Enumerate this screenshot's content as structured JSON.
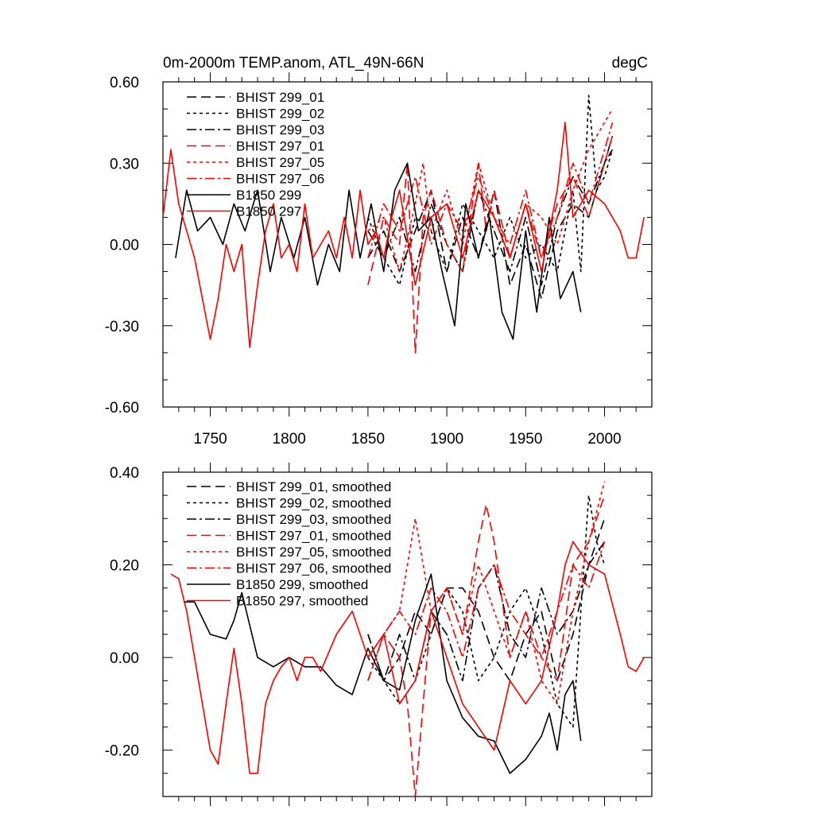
{
  "chart_data": [
    {
      "type": "line",
      "title": "0m-2000m TEMP.anom, ATL_49N-66N",
      "units": "degC",
      "xlim": [
        1720,
        2030
      ],
      "ylim": [
        -0.6,
        0.6
      ],
      "x_ticks": [
        1750,
        1800,
        1850,
        1900,
        1950,
        2000
      ],
      "y_ticks": [
        "-0.60",
        "-0.30",
        "0.00",
        "0.30",
        "0.60"
      ],
      "series": [
        {
          "name": "BHIST 299_01",
          "color": "#000000",
          "dash": "12 6",
          "x": [
            1850,
            1860,
            1870,
            1880,
            1890,
            1900,
            1910,
            1920,
            1930,
            1940,
            1950,
            1960,
            1970,
            1980,
            1990,
            2000,
            2005
          ],
          "y": [
            -0.05,
            0.05,
            -0.1,
            0.05,
            0.2,
            -0.1,
            0.1,
            -0.05,
            0.2,
            -0.15,
            0.0,
            -0.2,
            0.05,
            0.15,
            0.1,
            0.3,
            0.4
          ]
        },
        {
          "name": "BHIST 299_02",
          "color": "#000000",
          "dash": "4 4",
          "x": [
            1850,
            1860,
            1870,
            1880,
            1890,
            1900,
            1910,
            1920,
            1930,
            1940,
            1950,
            1960,
            1970,
            1980,
            1985,
            1990,
            1995,
            2000,
            2005
          ],
          "y": [
            0.1,
            -0.05,
            -0.15,
            0.1,
            0.05,
            -0.1,
            0.15,
            0.05,
            -0.05,
            0.1,
            -0.05,
            0.0,
            -0.1,
            0.2,
            -0.1,
            0.55,
            0.2,
            0.25,
            0.35
          ]
        },
        {
          "name": "BHIST 299_03",
          "color": "#000000",
          "dash": "12 4 3 4",
          "x": [
            1850,
            1860,
            1870,
            1880,
            1890,
            1900,
            1910,
            1920,
            1930,
            1940,
            1950,
            1960,
            1970,
            1980,
            1990,
            2000,
            2005
          ],
          "y": [
            0.05,
            -0.05,
            0.1,
            -0.1,
            0.15,
            0.0,
            -0.1,
            0.2,
            0.05,
            -0.1,
            0.1,
            -0.15,
            0.1,
            0.25,
            0.15,
            0.3,
            0.35
          ]
        },
        {
          "name": "BHIST 297_01",
          "color": "#ff0000",
          "dash": "12 6",
          "x": [
            1850,
            1860,
            1870,
            1875,
            1880,
            1885,
            1890,
            1900,
            1910,
            1920,
            1925,
            1930,
            1940,
            1950,
            1960,
            1970,
            1980,
            1990,
            2000,
            2005
          ],
          "y": [
            -0.15,
            0.1,
            0.0,
            0.3,
            -0.4,
            0.1,
            0.2,
            0.0,
            -0.1,
            0.3,
            0.05,
            0.2,
            -0.05,
            0.15,
            -0.05,
            0.15,
            0.25,
            0.1,
            0.3,
            0.4
          ]
        },
        {
          "name": "BHIST 297_05",
          "color": "#ff0000",
          "dash": "4 4",
          "x": [
            1850,
            1860,
            1870,
            1880,
            1885,
            1890,
            1900,
            1910,
            1920,
            1930,
            1940,
            1950,
            1960,
            1970,
            1980,
            1990,
            2000,
            2005
          ],
          "y": [
            0.05,
            0.1,
            -0.1,
            0.15,
            0.3,
            0.05,
            0.2,
            0.0,
            0.3,
            0.1,
            -0.05,
            0.15,
            0.1,
            0.0,
            0.2,
            0.35,
            0.45,
            0.5
          ]
        },
        {
          "name": "BHIST 297_06",
          "color": "#ff0000",
          "dash": "12 4 3 4",
          "x": [
            1850,
            1860,
            1870,
            1880,
            1890,
            1900,
            1910,
            1920,
            1930,
            1940,
            1950,
            1960,
            1970,
            1980,
            1990,
            2000,
            2005
          ],
          "y": [
            -0.05,
            0.15,
            0.05,
            0.25,
            0.0,
            0.15,
            0.05,
            0.25,
            0.1,
            0.0,
            0.2,
            -0.05,
            0.1,
            0.3,
            0.15,
            0.35,
            0.45
          ]
        },
        {
          "name": "B1850 299",
          "color": "#000000",
          "dash": "",
          "x": [
            1728,
            1735,
            1742,
            1750,
            1758,
            1765,
            1772,
            1780,
            1788,
            1795,
            1803,
            1810,
            1818,
            1825,
            1832,
            1838,
            1845,
            1852,
            1860,
            1867,
            1875,
            1882,
            1890,
            1897,
            1905,
            1912,
            1920,
            1927,
            1935,
            1942,
            1950,
            1957,
            1965,
            1972,
            1980,
            1985
          ],
          "y": [
            -0.05,
            0.2,
            0.05,
            0.1,
            0.0,
            0.15,
            0.05,
            0.2,
            -0.1,
            0.1,
            -0.05,
            0.1,
            -0.15,
            0.0,
            -0.1,
            0.2,
            -0.05,
            0.15,
            -0.1,
            0.2,
            0.3,
            0.05,
            0.1,
            -0.1,
            -0.3,
            0.15,
            -0.05,
            0.1,
            -0.25,
            -0.35,
            0.05,
            -0.25,
            0.1,
            -0.2,
            -0.1,
            -0.25
          ]
        },
        {
          "name": "B1850 297",
          "color": "#ff0000",
          "dash": "",
          "x": [
            1720,
            1725,
            1730,
            1735,
            1740,
            1745,
            1750,
            1755,
            1760,
            1765,
            1770,
            1775,
            1780,
            1785,
            1790,
            1795,
            1800,
            1805,
            1810,
            1815,
            1820,
            1825,
            1830,
            1835,
            1840,
            1845,
            1850,
            1855,
            1860,
            1865,
            1870,
            1880,
            1890,
            1900,
            1910,
            1920,
            1930,
            1940,
            1950,
            1960,
            1970,
            1975,
            1980,
            1990,
            2000,
            2010,
            2015,
            2020,
            2025
          ],
          "y": [
            0.1,
            0.35,
            0.15,
            0.05,
            -0.05,
            -0.2,
            -0.35,
            -0.2,
            0.0,
            -0.1,
            0.0,
            -0.38,
            -0.15,
            0.05,
            0.15,
            -0.05,
            0.0,
            -0.1,
            0.15,
            -0.05,
            0.0,
            0.05,
            -0.05,
            0.1,
            -0.05,
            0.2,
            0.0,
            0.05,
            -0.05,
            0.1,
            0.2,
            -0.15,
            0.1,
            0.15,
            -0.05,
            0.2,
            0.1,
            -0.05,
            0.15,
            -0.1,
            0.2,
            0.45,
            0.1,
            0.2,
            0.15,
            0.05,
            -0.05,
            -0.05,
            0.1
          ]
        }
      ]
    },
    {
      "type": "line",
      "xlim": [
        1720,
        2030
      ],
      "ylim": [
        -0.3,
        0.4
      ],
      "y_ticks": [
        "-0.20",
        "0.00",
        "0.20",
        "0.40"
      ],
      "series": [
        {
          "name": "BHIST 299_01, smoothed",
          "color": "#000000",
          "dash": "12 6",
          "x": [
            1850,
            1860,
            1870,
            1880,
            1890,
            1900,
            1910,
            1920,
            1930,
            1940,
            1950,
            1960,
            1970,
            1980,
            1990,
            2000
          ],
          "y": [
            0.05,
            -0.05,
            0.0,
            0.1,
            0.05,
            0.15,
            0.15,
            0.1,
            0.0,
            -0.05,
            0.05,
            0.1,
            -0.05,
            0.05,
            0.2,
            0.3
          ]
        },
        {
          "name": "BHIST 299_02, smoothed",
          "color": "#000000",
          "dash": "4 4",
          "x": [
            1850,
            1860,
            1870,
            1880,
            1890,
            1900,
            1910,
            1920,
            1930,
            1940,
            1950,
            1960,
            1970,
            1980,
            1985,
            1990,
            1995,
            2000
          ],
          "y": [
            0.0,
            -0.05,
            -0.1,
            -0.05,
            0.05,
            0.15,
            0.1,
            -0.05,
            0.0,
            0.1,
            0.15,
            0.05,
            -0.1,
            -0.15,
            0.1,
            0.35,
            0.25,
            0.2
          ]
        },
        {
          "name": "BHIST 299_03, smoothed",
          "color": "#000000",
          "dash": "12 4 3 4",
          "x": [
            1850,
            1860,
            1870,
            1880,
            1890,
            1900,
            1910,
            1920,
            1930,
            1940,
            1950,
            1960,
            1970,
            1980,
            1990,
            2000
          ],
          "y": [
            0.05,
            -0.05,
            0.05,
            -0.05,
            0.1,
            0.05,
            -0.05,
            0.15,
            0.2,
            0.05,
            0.0,
            0.15,
            0.05,
            0.1,
            0.2,
            0.25
          ]
        },
        {
          "name": "BHIST 297_01, smoothed",
          "color": "#ff0000",
          "dash": "12 6",
          "x": [
            1850,
            1860,
            1870,
            1875,
            1880,
            1885,
            1890,
            1900,
            1910,
            1920,
            1925,
            1930,
            1940,
            1950,
            1960,
            1970,
            1980,
            1990,
            2000
          ],
          "y": [
            -0.05,
            0.05,
            0.0,
            -0.1,
            -0.3,
            -0.1,
            0.1,
            0.15,
            0.05,
            0.25,
            0.33,
            0.25,
            0.0,
            0.1,
            0.0,
            -0.05,
            0.2,
            0.25,
            0.35
          ]
        },
        {
          "name": "BHIST 297_05, smoothed",
          "color": "#ff0000",
          "dash": "4 4",
          "x": [
            1850,
            1860,
            1870,
            1880,
            1890,
            1900,
            1910,
            1920,
            1930,
            1940,
            1950,
            1960,
            1970,
            1980,
            1990,
            2000
          ],
          "y": [
            0.0,
            0.05,
            0.1,
            0.3,
            0.1,
            0.15,
            0.05,
            0.2,
            0.1,
            0.0,
            0.1,
            -0.05,
            -0.1,
            0.1,
            0.25,
            0.38
          ]
        },
        {
          "name": "BHIST 297_06, smoothed",
          "color": "#ff0000",
          "dash": "12 4 3 4",
          "x": [
            1850,
            1860,
            1870,
            1880,
            1890,
            1900,
            1910,
            1920,
            1930,
            1940,
            1950,
            1960,
            1970,
            1980,
            1990,
            2000
          ],
          "y": [
            -0.05,
            0.05,
            0.1,
            0.05,
            0.15,
            0.1,
            0.0,
            0.15,
            0.2,
            0.1,
            0.05,
            0.0,
            0.1,
            0.2,
            0.15,
            0.25
          ]
        },
        {
          "name": "B1850 299, smoothed",
          "color": "#000000",
          "dash": "",
          "x": [
            1733,
            1740,
            1750,
            1760,
            1765,
            1770,
            1780,
            1790,
            1800,
            1810,
            1820,
            1830,
            1840,
            1850,
            1860,
            1870,
            1880,
            1890,
            1900,
            1910,
            1920,
            1930,
            1940,
            1950,
            1960,
            1965,
            1970,
            1975,
            1980,
            1985
          ],
          "y": [
            0.12,
            0.12,
            0.05,
            0.04,
            0.08,
            0.14,
            0.0,
            -0.02,
            0.0,
            -0.02,
            -0.02,
            -0.06,
            -0.08,
            0.02,
            -0.05,
            -0.07,
            0.08,
            0.18,
            -0.05,
            -0.13,
            -0.17,
            -0.18,
            -0.25,
            -0.22,
            -0.17,
            -0.12,
            -0.2,
            -0.08,
            -0.05,
            -0.18
          ]
        },
        {
          "name": "B1850 297, smoothed",
          "color": "#ff0000",
          "dash": "",
          "x": [
            1725,
            1730,
            1735,
            1740,
            1745,
            1750,
            1755,
            1760,
            1765,
            1770,
            1775,
            1780,
            1785,
            1790,
            1795,
            1800,
            1805,
            1810,
            1815,
            1820,
            1830,
            1840,
            1850,
            1860,
            1870,
            1880,
            1890,
            1900,
            1910,
            1920,
            1930,
            1940,
            1950,
            1960,
            1970,
            1975,
            1980,
            1990,
            2000,
            2010,
            2015,
            2020,
            2025
          ],
          "y": [
            0.18,
            0.17,
            0.1,
            0.0,
            -0.1,
            -0.2,
            -0.23,
            -0.1,
            0.02,
            -0.1,
            -0.25,
            -0.25,
            -0.1,
            -0.05,
            -0.02,
            0.0,
            -0.05,
            0.0,
            0.0,
            -0.03,
            0.05,
            0.1,
            0.0,
            0.05,
            -0.1,
            -0.05,
            0.1,
            0.0,
            -0.1,
            -0.15,
            -0.2,
            -0.05,
            -0.1,
            -0.05,
            0.1,
            0.2,
            0.25,
            0.2,
            0.18,
            0.05,
            -0.02,
            -0.03,
            0.0
          ]
        }
      ]
    }
  ]
}
